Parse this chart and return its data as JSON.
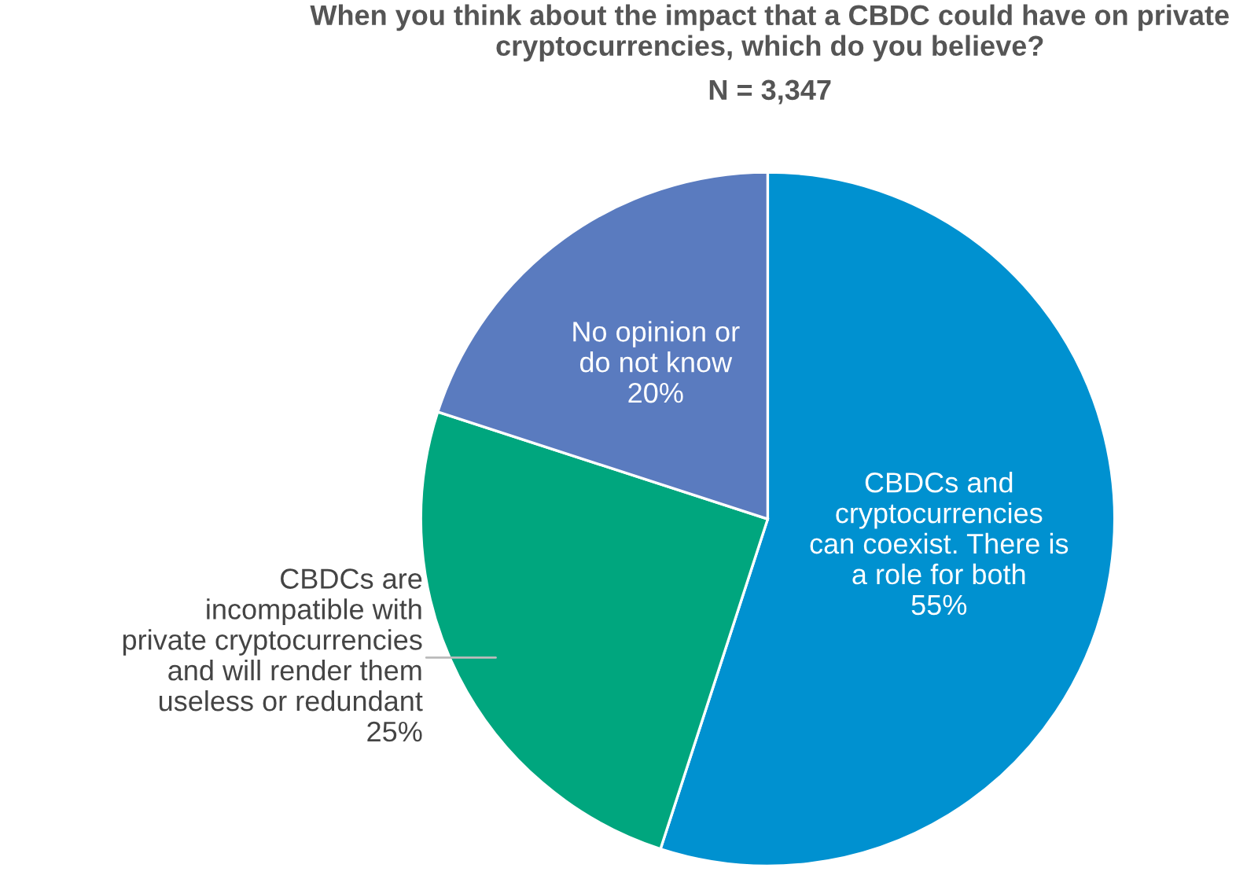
{
  "chart_data": {
    "type": "pie",
    "title": "When you think about the impact that a CBDC could have on private\ncryptocurrencies, which do you believe?",
    "subtitle": "N = 3,347",
    "categories": [
      "CBDCs and\ncryptocurrencies\ncan coexist. There is\na role for both",
      "CBDCs are\nincompatible with\nprivate cryptocurrencies\nand will render them\nuseless or redundant",
      "No opinion or\ndo not know"
    ],
    "values": [
      55,
      25,
      20
    ],
    "colors": [
      "#0091d0",
      "#00a67e",
      "#5a7bbf"
    ],
    "value_labels": [
      "55%",
      "25%",
      "20%"
    ]
  }
}
